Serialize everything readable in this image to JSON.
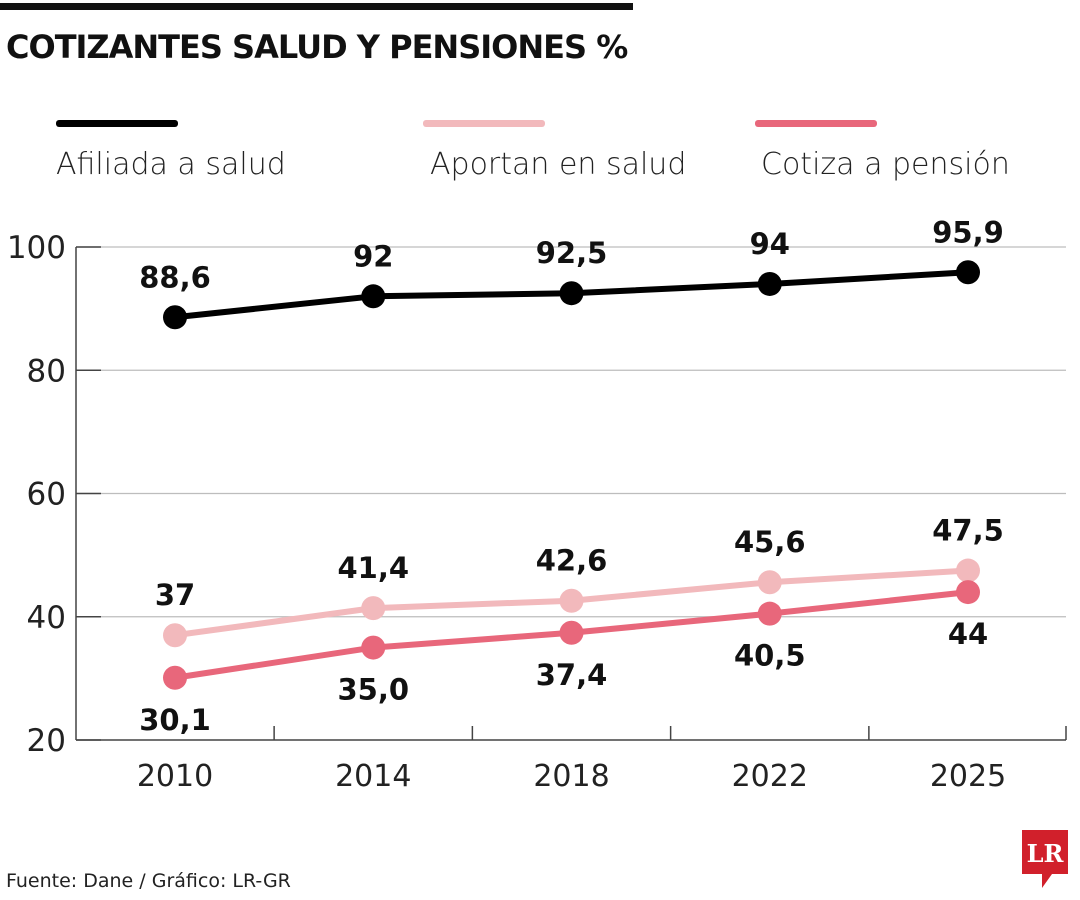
{
  "title": "COTIZANTES SALUD Y PENSIONES %",
  "source": "Fuente: Dane / Gráfico: LR-GR",
  "logo_text": "LR",
  "colors": {
    "afiliada": "#000000",
    "aportan": "#f2b9bc",
    "cotiza": "#e8677b",
    "logo": "#d1202b",
    "grid": "#bdbdbd"
  },
  "chart_data": {
    "type": "line",
    "title": "COTIZANTES SALUD Y PENSIONES %",
    "categories": [
      "2010",
      "2014",
      "2018",
      "2022",
      "2025"
    ],
    "ylim": [
      20,
      100
    ],
    "yticks": [
      "20",
      "40",
      "60",
      "80",
      "100"
    ],
    "grid": true,
    "legend_placement": "top",
    "series": [
      {
        "name": "Afiliada a salud",
        "values": [
          88.6,
          92,
          92.5,
          94,
          95.9
        ],
        "labels": [
          "88,6",
          "92",
          "92,5",
          "94",
          "95,9"
        ],
        "label_pos": "above"
      },
      {
        "name": "Aportan en salud",
        "values": [
          37,
          41.4,
          42.6,
          45.6,
          47.5
        ],
        "labels": [
          "37",
          "41,4",
          "42,6",
          "45,6",
          "47,5"
        ],
        "label_pos": "above"
      },
      {
        "name": "Cotiza a pensión",
        "values": [
          30.1,
          35.0,
          37.4,
          40.5,
          44
        ],
        "labels": [
          "30,1",
          "35,0",
          "37,4",
          "40,5",
          "44"
        ],
        "label_pos": "below"
      }
    ]
  }
}
